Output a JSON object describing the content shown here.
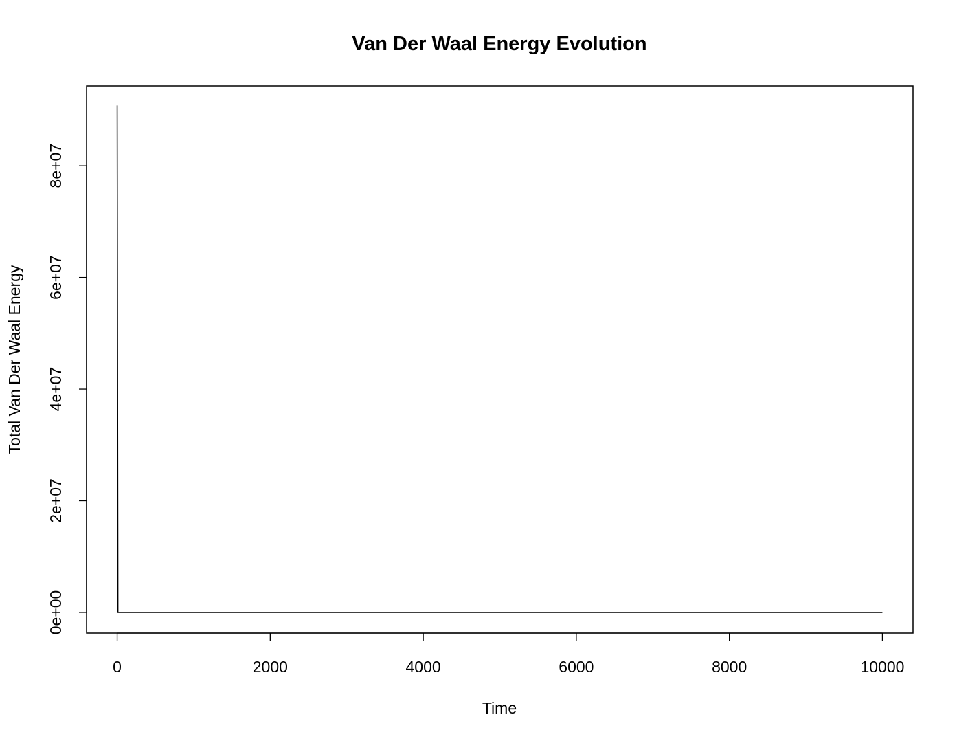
{
  "chart_data": {
    "type": "line",
    "title": "Van Der Waal Energy Evolution",
    "xlabel": "Time",
    "ylabel": "Total Van Der Waal Energy",
    "xlim": [
      -400,
      10400
    ],
    "ylim": [
      -3700000,
      94300000
    ],
    "x_ticks": [
      0,
      2000,
      4000,
      6000,
      8000,
      10000
    ],
    "x_tick_labels": [
      "0",
      "2000",
      "4000",
      "6000",
      "8000",
      "10000"
    ],
    "y_ticks": [
      0,
      20000000,
      40000000,
      60000000,
      80000000
    ],
    "y_tick_labels": [
      "0e+00",
      "2e+07",
      "4e+07",
      "6e+07",
      "8e+07"
    ],
    "grid": false,
    "legend": "none",
    "color": "#000000",
    "series": [
      {
        "x": [
          0,
          10,
          10000
        ],
        "y": [
          90800000,
          0,
          0
        ]
      }
    ]
  }
}
